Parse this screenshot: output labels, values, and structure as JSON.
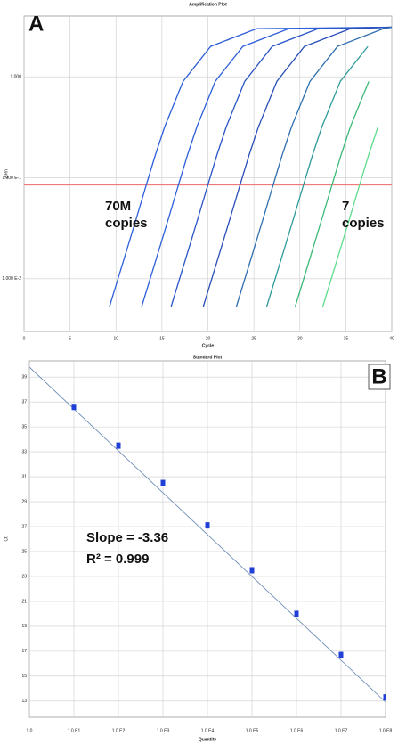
{
  "chart_data": [
    {
      "type": "line",
      "panel": "A",
      "title": "Amplification Plot",
      "x_label": "Cycle",
      "y_label": "ΔRn",
      "xlim": [
        0,
        40
      ],
      "xticks": [
        0,
        5,
        10,
        15,
        20,
        25,
        30,
        35,
        40
      ],
      "ylim": [
        0.003,
        4
      ],
      "y_scale": "log",
      "yticks": [
        {
          "value": 0.01,
          "label": "1.000 E-2"
        },
        {
          "value": 0.1,
          "label": "1.000 E-1"
        },
        {
          "value": 1,
          "label": "1.000"
        }
      ],
      "grid": true,
      "threshold": {
        "value": 0.085,
        "color": "#f07878"
      },
      "annotations": [
        "70M copies",
        "7 copies"
      ],
      "series": [
        {
          "color": "#2d5fd8",
          "x": [
            9.3,
            11.3,
            12.3,
            13.3,
            14.3,
            15.3,
            17.3,
            20.3,
            25.3,
            40
          ],
          "values": [
            0.0053,
            0.021,
            0.042,
            0.085,
            0.17,
            0.32,
            0.9,
            2.0,
            3.0,
            3.1
          ]
        },
        {
          "color": "#2d5fd8",
          "x": [
            12.8,
            14.8,
            15.8,
            16.8,
            17.8,
            18.8,
            20.8,
            23.8,
            28.8,
            40
          ],
          "values": [
            0.0053,
            0.021,
            0.042,
            0.085,
            0.17,
            0.32,
            0.9,
            2.0,
            3.0,
            3.1
          ]
        },
        {
          "color": "#2a55c8",
          "x": [
            16,
            18,
            19,
            20,
            21,
            22,
            24,
            27,
            32,
            40
          ],
          "values": [
            0.0053,
            0.021,
            0.042,
            0.085,
            0.17,
            0.32,
            0.9,
            2.0,
            3.0,
            3.1
          ]
        },
        {
          "color": "#2a4fb8",
          "x": [
            19.5,
            21.5,
            22.5,
            23.5,
            24.5,
            25.5,
            27.5,
            30.5,
            35.5,
            40
          ],
          "values": [
            0.0053,
            0.021,
            0.042,
            0.085,
            0.17,
            0.32,
            0.9,
            2.0,
            3.0,
            3.1
          ]
        },
        {
          "color": "#2f6fb0",
          "x": [
            23.1,
            25.1,
            26.1,
            27.1,
            28.1,
            29.1,
            31.1,
            34.1,
            39.1,
            40
          ],
          "values": [
            0.0053,
            0.021,
            0.042,
            0.085,
            0.17,
            0.32,
            0.9,
            2.0,
            3.0,
            3.1
          ]
        },
        {
          "color": "#2f9a9a",
          "x": [
            26.4,
            28.4,
            29.4,
            30.4,
            31.4,
            32.4,
            34.4,
            37.4
          ],
          "values": [
            0.0053,
            0.021,
            0.042,
            0.085,
            0.17,
            0.32,
            0.9,
            2.0
          ]
        },
        {
          "color": "#3cb878",
          "x": [
            29.5,
            31.5,
            32.5,
            33.5,
            34.5,
            35.5,
            37.5
          ],
          "values": [
            0.0053,
            0.021,
            0.042,
            0.085,
            0.17,
            0.32,
            0.9
          ]
        },
        {
          "color": "#5fdc8c",
          "x": [
            32.5,
            34.5,
            35.5,
            36.5,
            37.5,
            38.5
          ],
          "values": [
            0.0053,
            0.021,
            0.042,
            0.085,
            0.17,
            0.32
          ]
        }
      ]
    },
    {
      "type": "scatter",
      "panel": "B",
      "title": "Standard Plot",
      "x_label": "Quantity",
      "y_label": "Ct",
      "x_scale": "log",
      "xlim": [
        1,
        100000000
      ],
      "xticks": [
        {
          "value": 1,
          "label": "1.0"
        },
        {
          "value": 10,
          "label": "1.0 E1"
        },
        {
          "value": 100,
          "label": "1.0 E2"
        },
        {
          "value": 1000,
          "label": "1.0 E3"
        },
        {
          "value": 10000,
          "label": "1.0 E4"
        },
        {
          "value": 100000,
          "label": "1.0 E5"
        },
        {
          "value": 1000000,
          "label": "1.0 E6"
        },
        {
          "value": 10000000,
          "label": "1.0 E7"
        },
        {
          "value": 100000000,
          "label": "1.0 E8"
        }
      ],
      "ylim": [
        11.7,
        40.3
      ],
      "yticks": [
        13,
        15,
        17,
        19,
        21,
        23,
        25,
        27,
        29,
        31,
        33,
        35,
        37,
        39
      ],
      "grid": true,
      "x": [
        10,
        100,
        1000,
        10000,
        100000,
        1000000,
        10000000,
        100000000
      ],
      "values": [
        36.6,
        33.5,
        30.5,
        27.1,
        23.5,
        20.0,
        16.7,
        13.3
      ],
      "color": "#1f3fd6",
      "fit": {
        "slope": -3.36,
        "intercept": 39.8,
        "color": "#6f8fb8"
      },
      "annotations": [
        "Slope = -3.36",
        "R² = 0.999"
      ]
    }
  ]
}
